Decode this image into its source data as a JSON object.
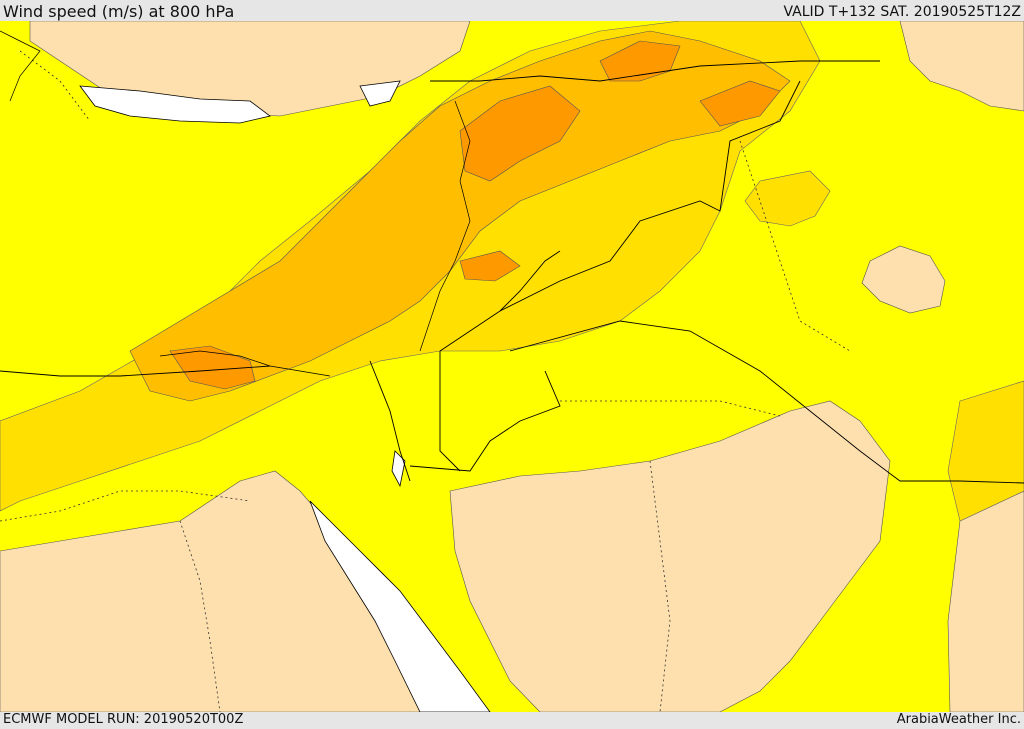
{
  "header": {
    "title": "Wind speed (m/s) at 800 hPa",
    "valid": "VALID T+132 SAT. 20190525T12Z"
  },
  "footer": {
    "model_run": "ECMWF MODEL RUN: 20190520T00Z",
    "credit": "ArabiaWeather Inc."
  },
  "colors": {
    "lowest": "#fde0ad",
    "low": "#ffff00",
    "mid": "#ffe000",
    "high": "#ffbf00",
    "higher": "#ff9900",
    "water": "#ffffff",
    "border": "#000000"
  }
}
